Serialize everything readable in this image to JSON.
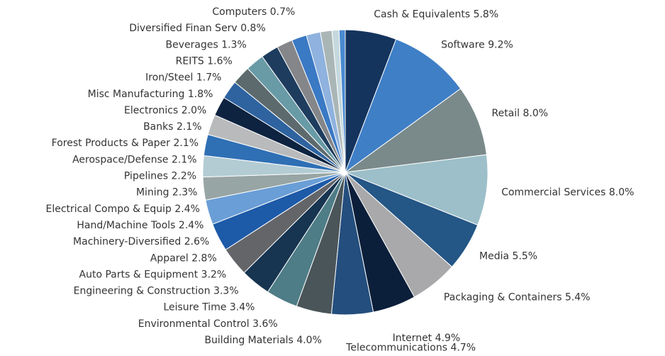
{
  "chart_data": {
    "type": "pie",
    "categories": [
      "Cash & Equivalents",
      "Software",
      "Retail",
      "Commercial Services",
      "Media",
      "Packaging & Containers",
      "Internet",
      "Telecommunications",
      "Building Materials",
      "Environmental Control",
      "Leisure Time",
      "Engineering & Construction",
      "Auto Parts & Equipment",
      "Apparel",
      "Machinery-Diversified",
      "Hand/Machine Tools",
      "Electrical Compo & Equip",
      "Mining",
      "Pipelines",
      "Aerospace/Defense",
      "Forest Products & Paper",
      "Banks",
      "Electronics",
      "Misc Manufacturing",
      "Iron/Steel",
      "REITS",
      "Beverages",
      "Diversified Finan Serv",
      "Computers"
    ],
    "values": [
      5.8,
      9.2,
      8.0,
      8.0,
      5.5,
      5.4,
      4.9,
      4.7,
      4.0,
      3.6,
      3.4,
      3.3,
      3.2,
      2.8,
      2.6,
      2.4,
      2.4,
      2.3,
      2.2,
      2.1,
      2.1,
      2.1,
      2.0,
      1.8,
      1.7,
      1.6,
      1.3,
      0.8,
      0.7
    ],
    "value_labels": [
      "5.8%",
      "9.2%",
      "8.0%",
      "8.0%",
      "5.5%",
      "5.4%",
      "4.9%",
      "4.7%",
      "4.0%",
      "3.6%",
      "3.4%",
      "3.3%",
      "3.2%",
      "2.8%",
      "2.6%",
      "2.4%",
      "2.4%",
      "2.3%",
      "2.2%",
      "2.1%",
      "2.1%",
      "2.1%",
      "2.0%",
      "1.8%",
      "1.7%",
      "1.6%",
      "1.3%",
      "0.8%",
      "0.7%"
    ],
    "colors": [
      "#14345e",
      "#3f7fc6",
      "#7a8a8a",
      "#9dbfc9",
      "#245686",
      "#a9a9ab",
      "#0b1f3a",
      "#244e7d",
      "#4a5559",
      "#4e7d87",
      "#173450",
      "#636569",
      "#1d5aa8",
      "#6a9ed6",
      "#98a5a5",
      "#b3ccd4",
      "#2f6fb4",
      "#b9babc",
      "#0d2340",
      "#2e63a0",
      "#5d6a6d",
      "#689ba6",
      "#1e3d5e",
      "#858689",
      "#3a79c4",
      "#8fb2de",
      "#aab6b6",
      "#c5d8dd",
      "#4a8ad0"
    ]
  }
}
